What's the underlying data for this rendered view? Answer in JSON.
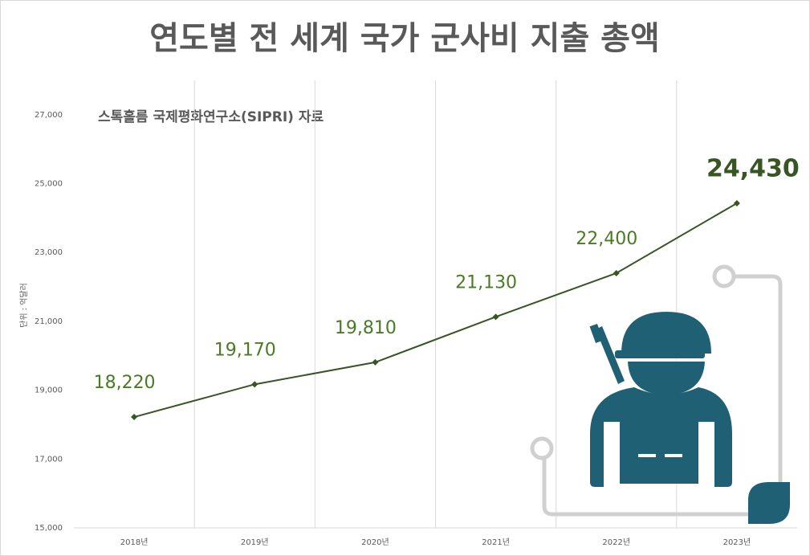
{
  "chart_data": {
    "type": "line",
    "title": "연도별 전 세계 국가 군사비 지출 총액",
    "subtitle": "스톡홀름 국제평화연구소(SIPRI) 자료",
    "y_axis_label": "단위 : 억달러",
    "categories": [
      "2018년",
      "2019년",
      "2020년",
      "2021년",
      "2022년",
      "2023년"
    ],
    "series": [
      {
        "name": "군사비 지출 총액",
        "color": "#375623",
        "values": [
          18220,
          19170,
          19810,
          21130,
          22400,
          24430
        ],
        "value_labels": [
          "18,220",
          "19,170",
          "19,810",
          "21,130",
          "22,400",
          "24,430"
        ]
      }
    ],
    "ylim": [
      15000,
      28000
    ],
    "yticks": [
      {
        "value": 15000,
        "label": "15,000"
      },
      {
        "value": 17000,
        "label": "17,000"
      },
      {
        "value": 19000,
        "label": "19,000"
      },
      {
        "value": 21000,
        "label": "21,000"
      },
      {
        "value": 23000,
        "label": "23,000"
      },
      {
        "value": 25000,
        "label": "25,000"
      },
      {
        "value": 27000,
        "label": "27,000"
      }
    ],
    "grid": true
  }
}
